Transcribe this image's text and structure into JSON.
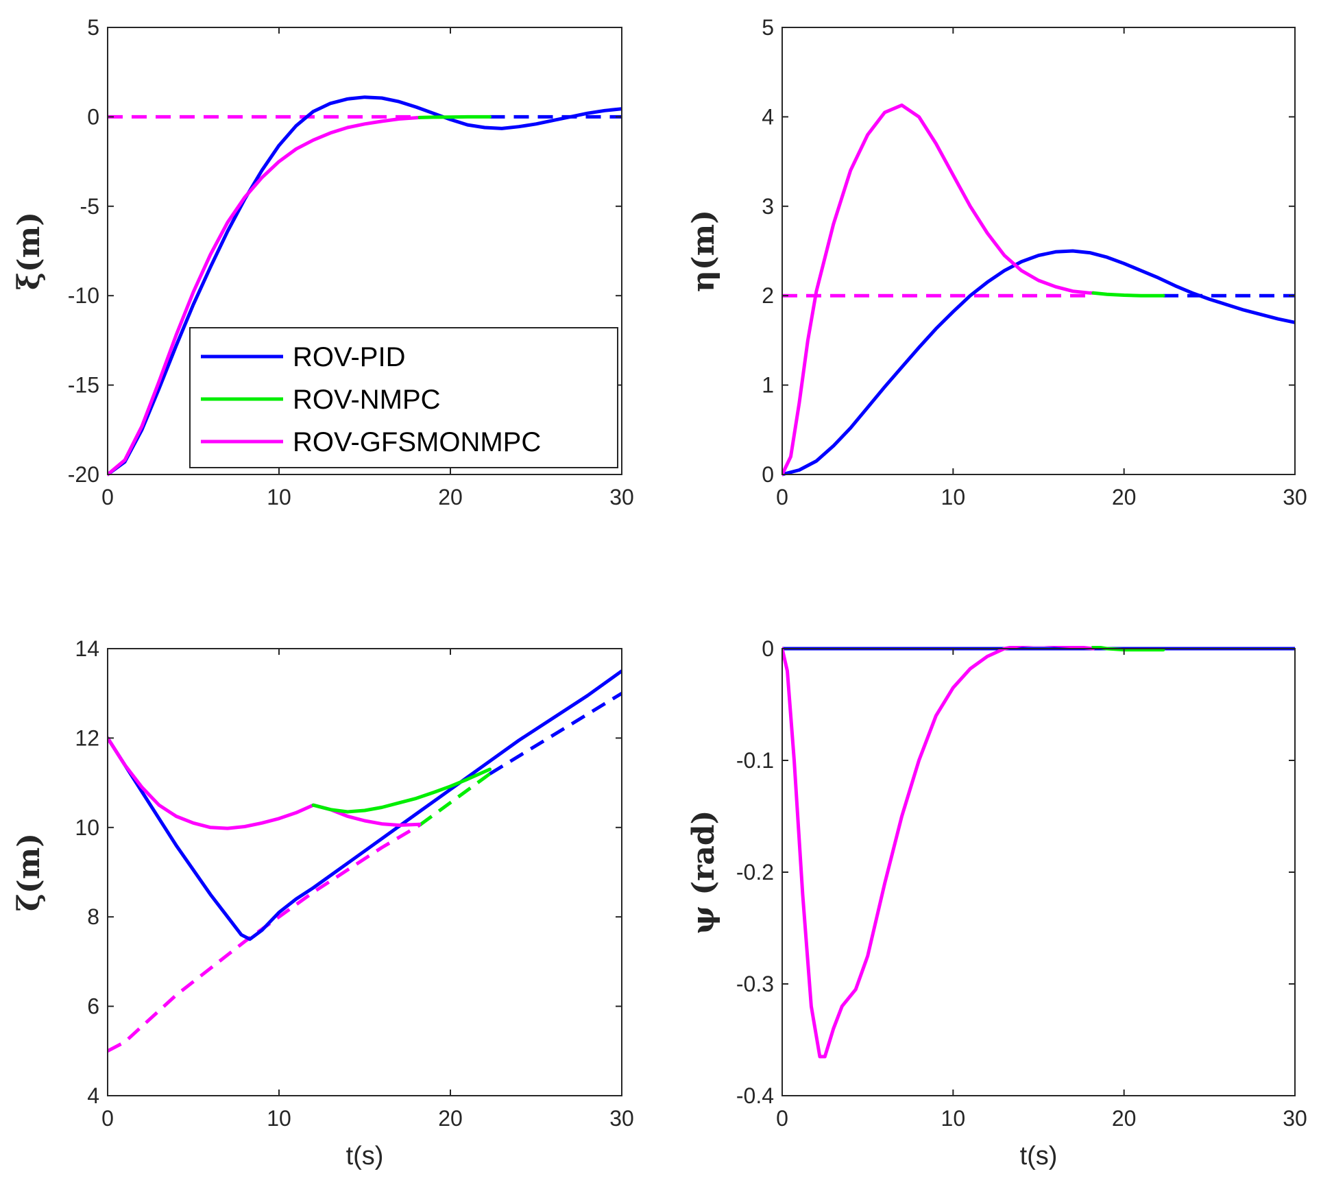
{
  "chart_data": [
    {
      "type": "line",
      "id": "xi",
      "ylabel": "ξ(m)",
      "xlabel": "",
      "xlim": [
        0,
        30
      ],
      "ylim": [
        -20,
        5
      ],
      "xticks": [
        0,
        10,
        20,
        30
      ],
      "yticks": [
        -20,
        -15,
        -10,
        -5,
        0,
        5
      ],
      "series": [
        {
          "name": "ref-PID",
          "color": "#0000ff",
          "dash": true,
          "points": [
            [
              22.3,
              0
            ],
            [
              30,
              0
            ]
          ]
        },
        {
          "name": "ref-GFSMONMPC",
          "color": "#ff00ff",
          "dash": true,
          "points": [
            [
              0,
              0
            ],
            [
              18.2,
              0
            ]
          ]
        },
        {
          "name": "ROV-PID",
          "color": "#0000ff",
          "dash": false,
          "points": [
            [
              0,
              -20
            ],
            [
              1,
              -19.3
            ],
            [
              2,
              -17.5
            ],
            [
              3,
              -15.2
            ],
            [
              4,
              -12.8
            ],
            [
              5,
              -10.5
            ],
            [
              6,
              -8.4
            ],
            [
              7,
              -6.4
            ],
            [
              8,
              -4.6
            ],
            [
              9,
              -3.0
            ],
            [
              10,
              -1.6
            ],
            [
              11,
              -0.5
            ],
            [
              12,
              0.3
            ],
            [
              13,
              0.75
            ],
            [
              14,
              1.0
            ],
            [
              15,
              1.1
            ],
            [
              16,
              1.05
            ],
            [
              17,
              0.85
            ],
            [
              18,
              0.55
            ],
            [
              19,
              0.2
            ],
            [
              20,
              -0.15
            ],
            [
              21,
              -0.45
            ],
            [
              22,
              -0.6
            ],
            [
              23,
              -0.65
            ],
            [
              24,
              -0.55
            ],
            [
              25,
              -0.4
            ],
            [
              26,
              -0.2
            ],
            [
              27,
              0.0
            ],
            [
              28,
              0.2
            ],
            [
              29,
              0.35
            ],
            [
              30,
              0.45
            ]
          ]
        },
        {
          "name": "ROV-GFSMONMPC",
          "color": "#ff00ff",
          "dash": false,
          "points": [
            [
              0,
              -20
            ],
            [
              1,
              -19.2
            ],
            [
              2,
              -17.3
            ],
            [
              3,
              -14.8
            ],
            [
              4,
              -12.2
            ],
            [
              5,
              -9.8
            ],
            [
              6,
              -7.7
            ],
            [
              7,
              -5.9
            ],
            [
              8,
              -4.5
            ],
            [
              9,
              -3.4
            ],
            [
              10,
              -2.5
            ],
            [
              11,
              -1.8
            ],
            [
              12,
              -1.3
            ],
            [
              13,
              -0.9
            ],
            [
              14,
              -0.6
            ],
            [
              15,
              -0.4
            ],
            [
              16,
              -0.25
            ],
            [
              17,
              -0.12
            ],
            [
              18,
              -0.05
            ],
            [
              18.2,
              -0.04
            ]
          ]
        },
        {
          "name": "ROV-NMPC",
          "color": "#00ee00",
          "dash": false,
          "points": [
            [
              18.2,
              -0.04
            ],
            [
              19,
              -0.02
            ],
            [
              20,
              -0.01
            ],
            [
              21,
              0
            ],
            [
              22.3,
              0
            ]
          ]
        }
      ],
      "legend": {
        "placement": "bottom-right",
        "entries": [
          {
            "label": "ROV-PID",
            "color": "#0000ff"
          },
          {
            "label": "ROV-NMPC",
            "color": "#00ee00"
          },
          {
            "label": "ROV-GFSMONMPC",
            "color": "#ff00ff"
          }
        ]
      }
    },
    {
      "type": "line",
      "id": "eta",
      "ylabel": "η(m)",
      "xlabel": "",
      "xlim": [
        0,
        30
      ],
      "ylim": [
        0,
        5
      ],
      "xticks": [
        0,
        10,
        20,
        30
      ],
      "yticks": [
        0,
        1,
        2,
        3,
        4,
        5
      ],
      "series": [
        {
          "name": "ref-PID",
          "color": "#0000ff",
          "dash": true,
          "points": [
            [
              22.3,
              2
            ],
            [
              30,
              2
            ]
          ]
        },
        {
          "name": "ref-GFSMONMPC",
          "color": "#ff00ff",
          "dash": true,
          "points": [
            [
              0,
              2
            ],
            [
              18.2,
              2
            ]
          ]
        },
        {
          "name": "ROV-PID",
          "color": "#0000ff",
          "dash": false,
          "points": [
            [
              0,
              0
            ],
            [
              1,
              0.05
            ],
            [
              2,
              0.15
            ],
            [
              3,
              0.32
            ],
            [
              4,
              0.52
            ],
            [
              5,
              0.75
            ],
            [
              6,
              0.98
            ],
            [
              7,
              1.2
            ],
            [
              8,
              1.42
            ],
            [
              9,
              1.63
            ],
            [
              10,
              1.82
            ],
            [
              11,
              2.0
            ],
            [
              12,
              2.15
            ],
            [
              13,
              2.28
            ],
            [
              14,
              2.38
            ],
            [
              15,
              2.45
            ],
            [
              16,
              2.49
            ],
            [
              17,
              2.5
            ],
            [
              18,
              2.48
            ],
            [
              19,
              2.43
            ],
            [
              20,
              2.36
            ],
            [
              21,
              2.28
            ],
            [
              22,
              2.2
            ],
            [
              23,
              2.11
            ],
            [
              24,
              2.03
            ],
            [
              25,
              1.96
            ],
            [
              26,
              1.9
            ],
            [
              27,
              1.84
            ],
            [
              28,
              1.79
            ],
            [
              29,
              1.74
            ],
            [
              30,
              1.7
            ]
          ]
        },
        {
          "name": "ROV-GFSMONMPC",
          "color": "#ff00ff",
          "dash": false,
          "points": [
            [
              0,
              0
            ],
            [
              0.5,
              0.2
            ],
            [
              1,
              0.8
            ],
            [
              1.5,
              1.5
            ],
            [
              2,
              2.05
            ],
            [
              3,
              2.8
            ],
            [
              4,
              3.4
            ],
            [
              5,
              3.8
            ],
            [
              6,
              4.05
            ],
            [
              7,
              4.13
            ],
            [
              8,
              4.0
            ],
            [
              9,
              3.7
            ],
            [
              10,
              3.35
            ],
            [
              11,
              3.0
            ],
            [
              12,
              2.7
            ],
            [
              13,
              2.45
            ],
            [
              14,
              2.28
            ],
            [
              15,
              2.17
            ],
            [
              16,
              2.1
            ],
            [
              17,
              2.05
            ],
            [
              18,
              2.03
            ],
            [
              18.2,
              2.03
            ]
          ]
        },
        {
          "name": "ROV-NMPC",
          "color": "#00ee00",
          "dash": false,
          "points": [
            [
              18.2,
              2.03
            ],
            [
              19,
              2.015
            ],
            [
              20,
              2.005
            ],
            [
              21,
              2.0
            ],
            [
              22.3,
              2.0
            ]
          ]
        }
      ]
    },
    {
      "type": "line",
      "id": "zeta",
      "ylabel": "ζ(m)",
      "xlabel": "t(s)",
      "xlim": [
        0,
        30
      ],
      "ylim": [
        4,
        14
      ],
      "xticks": [
        0,
        10,
        20,
        30
      ],
      "yticks": [
        4,
        6,
        8,
        10,
        12,
        14
      ],
      "series": [
        {
          "name": "ref-PID",
          "color": "#0000ff",
          "dash": true,
          "points": [
            [
              22.3,
              11.2
            ],
            [
              30,
              13.0
            ]
          ]
        },
        {
          "name": "ref-NMPC",
          "color": "#00ee00",
          "dash": true,
          "points": [
            [
              18.2,
              10.05
            ],
            [
              22.3,
              11.2
            ]
          ]
        },
        {
          "name": "ref-GFSMONMPC",
          "color": "#ff00ff",
          "dash": true,
          "points": [
            [
              0,
              5.0
            ],
            [
              1,
              5.2
            ],
            [
              2,
              5.55
            ],
            [
              3,
              5.9
            ],
            [
              4,
              6.25
            ],
            [
              6,
              6.85
            ],
            [
              8,
              7.45
            ],
            [
              10,
              8.0
            ],
            [
              12,
              8.55
            ],
            [
              14,
              9.05
            ],
            [
              16,
              9.55
            ],
            [
              18.2,
              10.05
            ]
          ]
        },
        {
          "name": "ROV-PID",
          "color": "#0000ff",
          "dash": false,
          "points": [
            [
              0,
              12.0
            ],
            [
              1,
              11.4
            ],
            [
              2,
              10.8
            ],
            [
              3,
              10.2
            ],
            [
              4,
              9.6
            ],
            [
              5,
              9.05
            ],
            [
              6,
              8.5
            ],
            [
              7,
              8.0
            ],
            [
              7.8,
              7.6
            ],
            [
              8.3,
              7.5
            ],
            [
              9,
              7.7
            ],
            [
              10,
              8.1
            ],
            [
              11,
              8.4
            ],
            [
              12,
              8.65
            ],
            [
              14,
              9.2
            ],
            [
              16,
              9.75
            ],
            [
              18,
              10.3
            ],
            [
              20,
              10.85
            ],
            [
              22,
              11.4
            ],
            [
              24,
              11.95
            ],
            [
              26,
              12.45
            ],
            [
              28,
              12.95
            ],
            [
              30,
              13.5
            ]
          ]
        },
        {
          "name": "ROV-GFSMONMPC",
          "color": "#ff00ff",
          "dash": false,
          "points": [
            [
              0,
              12.0
            ],
            [
              1,
              11.4
            ],
            [
              2,
              10.9
            ],
            [
              3,
              10.5
            ],
            [
              4,
              10.25
            ],
            [
              5,
              10.1
            ],
            [
              6,
              10.0
            ],
            [
              7,
              9.98
            ],
            [
              8,
              10.02
            ],
            [
              9,
              10.1
            ],
            [
              10,
              10.2
            ],
            [
              11,
              10.33
            ],
            [
              12,
              10.5
            ],
            [
              13,
              10.4
            ],
            [
              14,
              10.25
            ],
            [
              15,
              10.15
            ],
            [
              16,
              10.08
            ],
            [
              17,
              10.05
            ],
            [
              18.2,
              10.07
            ]
          ]
        },
        {
          "name": "ROV-NMPC",
          "color": "#00ee00",
          "dash": false,
          "points": [
            [
              12,
              10.5
            ],
            [
              13,
              10.4
            ],
            [
              14,
              10.35
            ],
            [
              15,
              10.38
            ],
            [
              16,
              10.45
            ],
            [
              17,
              10.55
            ],
            [
              18,
              10.65
            ],
            [
              19,
              10.78
            ],
            [
              20,
              10.92
            ],
            [
              21,
              11.08
            ],
            [
              22.3,
              11.3
            ]
          ]
        }
      ]
    },
    {
      "type": "line",
      "id": "psi",
      "ylabel": "ψ (rad)",
      "xlabel": "t(s)",
      "xlim": [
        0,
        30
      ],
      "ylim": [
        -0.4,
        0
      ],
      "xticks": [
        0,
        10,
        20,
        30
      ],
      "yticks": [
        -0.4,
        -0.3,
        -0.2,
        -0.1,
        0
      ],
      "series": [
        {
          "name": "ref-PID",
          "color": "#0000ff",
          "dash": true,
          "points": [
            [
              0,
              0
            ],
            [
              30,
              0
            ]
          ]
        },
        {
          "name": "ref-GFSMONMPC",
          "color": "#ff00ff",
          "dash": true,
          "points": [
            [
              0,
              0
            ],
            [
              18.2,
              0
            ]
          ]
        },
        {
          "name": "ROV-PID",
          "color": "#0000ff",
          "dash": false,
          "points": [
            [
              0,
              0
            ],
            [
              30,
              0
            ]
          ]
        },
        {
          "name": "ROV-GFSMONMPC",
          "color": "#ff00ff",
          "dash": false,
          "points": [
            [
              0,
              0
            ],
            [
              0.3,
              -0.02
            ],
            [
              0.7,
              -0.1
            ],
            [
              1.2,
              -0.22
            ],
            [
              1.7,
              -0.32
            ],
            [
              2.2,
              -0.365
            ],
            [
              2.5,
              -0.365
            ],
            [
              3,
              -0.34
            ],
            [
              3.5,
              -0.32
            ],
            [
              4.3,
              -0.305
            ],
            [
              5,
              -0.275
            ],
            [
              6,
              -0.21
            ],
            [
              7,
              -0.15
            ],
            [
              8,
              -0.1
            ],
            [
              9,
              -0.06
            ],
            [
              10,
              -0.035
            ],
            [
              11,
              -0.018
            ],
            [
              12,
              -0.007
            ],
            [
              13,
              0.0
            ],
            [
              14,
              0.003
            ],
            [
              15,
              0.004
            ],
            [
              16,
              0.003
            ],
            [
              17,
              0.002
            ],
            [
              18.2,
              0.0
            ]
          ]
        },
        {
          "name": "ROV-NMPC",
          "color": "#00ee00",
          "dash": false,
          "points": [
            [
              18.2,
              0.002
            ],
            [
              19,
              0.0
            ],
            [
              20,
              -0.001
            ],
            [
              21,
              -0.001
            ],
            [
              22.3,
              -0.001
            ]
          ]
        }
      ]
    }
  ]
}
